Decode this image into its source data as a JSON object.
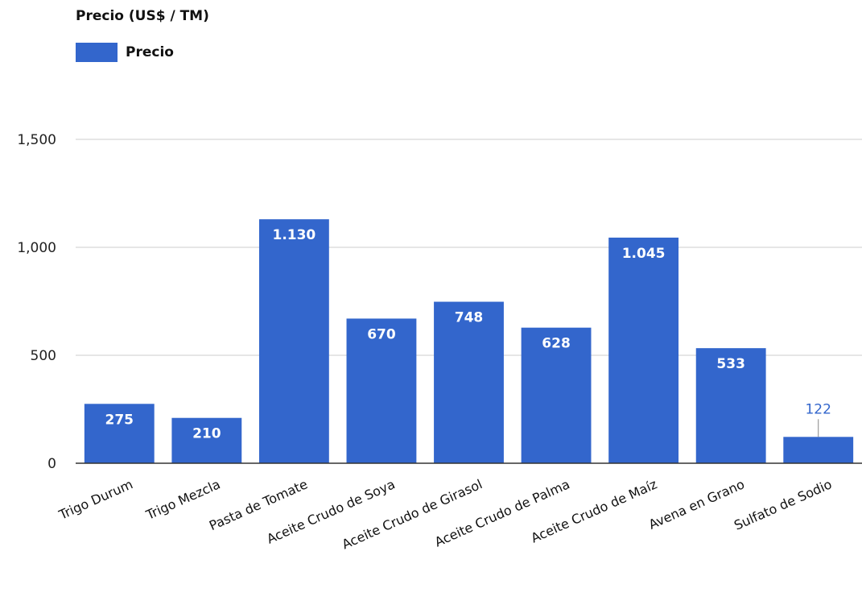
{
  "chart_data": {
    "type": "bar",
    "title": "Precio (US$ / TM)",
    "xlabel": "",
    "ylabel": "",
    "ylim": [
      0,
      1500
    ],
    "yticks": [
      0,
      500,
      1000,
      1500
    ],
    "ytick_labels": [
      "0",
      "500",
      "1,000",
      "1,500"
    ],
    "grid": true,
    "legend": "top-left",
    "categories": [
      "Trigo Durum",
      "Trigo Mezcla",
      "Pasta de Tomate",
      "Aceite Crudo de Soya",
      "Aceite Crudo de Girasol",
      "Aceite Crudo de Palma",
      "Aceite Crudo de Maíz",
      "Avena en Grano",
      "Sulfato de Sodio"
    ],
    "series": [
      {
        "name": "Precio",
        "color": "#3366cc",
        "values": [
          275,
          210,
          1130,
          670,
          748,
          628,
          1045,
          533,
          122
        ],
        "labels": [
          "275",
          "210",
          "1.130",
          "670",
          "748",
          "628",
          "1.045",
          "533",
          "122"
        ]
      }
    ]
  }
}
